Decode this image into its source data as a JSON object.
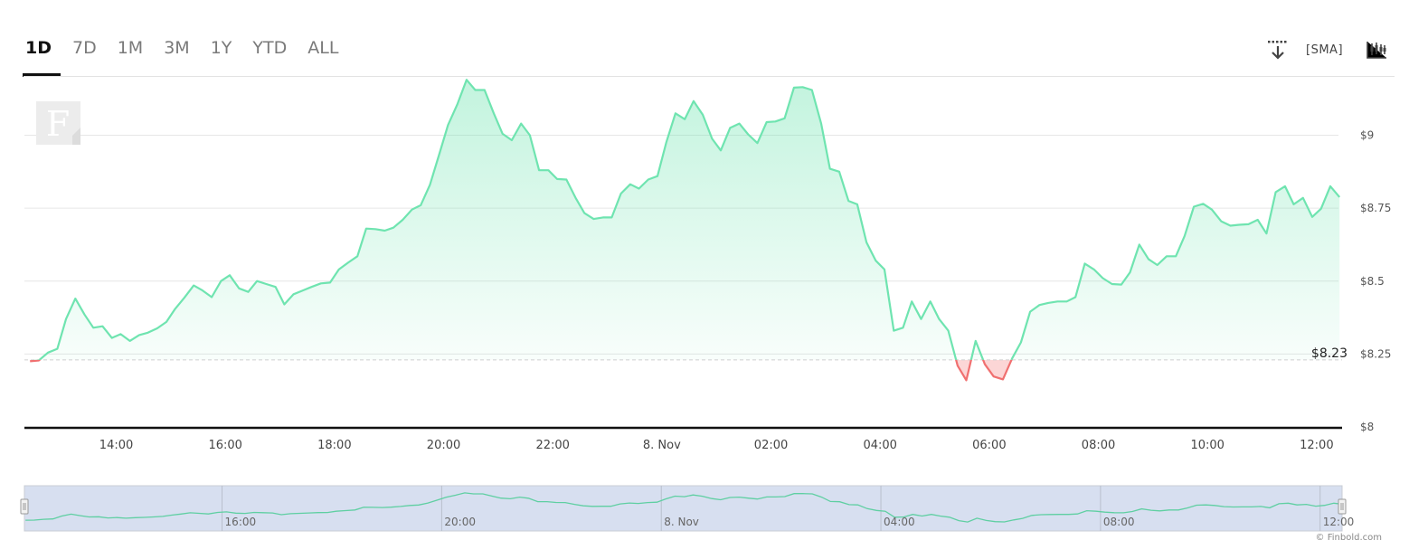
{
  "range_tabs": [
    {
      "label": "1D",
      "active": true
    },
    {
      "label": "7D",
      "active": false
    },
    {
      "label": "1M",
      "active": false
    },
    {
      "label": "3M",
      "active": false
    },
    {
      "label": "1Y",
      "active": false
    },
    {
      "label": "YTD",
      "active": false
    },
    {
      "label": "ALL",
      "active": false
    }
  ],
  "toolbar": {
    "download_icon": "download-icon",
    "sma_label": "SMA",
    "indicators_icon": "candlestick-chart-icon"
  },
  "watermark": {
    "letter": "F"
  },
  "copyright": "© Finbold.com",
  "colors": {
    "up_line": "#6fe4b0",
    "down_line": "#f07070",
    "down_fill": "#fcd6d6",
    "navigator_bg": "#d7dff0"
  },
  "chart_data": {
    "type": "area",
    "title": "",
    "baseline_value": 8.23,
    "baseline_label": "$8.23",
    "y_ticks": [
      {
        "value": 8,
        "label": "$8"
      },
      {
        "value": 8.25,
        "label": "$8.25"
      },
      {
        "value": 8.5,
        "label": "$8.5"
      },
      {
        "value": 8.75,
        "label": "$8.75"
      },
      {
        "value": 9,
        "label": "$9"
      }
    ],
    "ylim": [
      8,
      9.2
    ],
    "x_ticks": [
      {
        "h": 14,
        "label": "14:00"
      },
      {
        "h": 16,
        "label": "16:00"
      },
      {
        "h": 18,
        "label": "18:00"
      },
      {
        "h": 20,
        "label": "20:00"
      },
      {
        "h": 22,
        "label": "22:00"
      },
      {
        "h": 24,
        "label": "8. Nov"
      },
      {
        "h": 26,
        "label": "02:00"
      },
      {
        "h": 28,
        "label": "04:00"
      },
      {
        "h": 30,
        "label": "06:00"
      },
      {
        "h": 32,
        "label": "08:00"
      },
      {
        "h": 34,
        "label": "10:00"
      },
      {
        "h": 36,
        "label": "12:00"
      }
    ],
    "navigator_ticks": [
      {
        "h": 16,
        "label": "16:00"
      },
      {
        "h": 20,
        "label": "20:00"
      },
      {
        "h": 24,
        "label": "8. Nov"
      },
      {
        "h": 28,
        "label": "04:00"
      },
      {
        "h": 32,
        "label": "08:00"
      },
      {
        "h": 36,
        "label": "12:00"
      }
    ],
    "xlim": [
      12.4,
      36.4
    ],
    "series": [
      {
        "points": [
          [
            12.42,
            8.225
          ],
          [
            12.58,
            8.228
          ],
          [
            12.75,
            8.255
          ],
          [
            12.92,
            8.268
          ],
          [
            13.08,
            8.37
          ],
          [
            13.25,
            8.44
          ],
          [
            13.42,
            8.385
          ],
          [
            13.58,
            8.34
          ],
          [
            13.75,
            8.345
          ],
          [
            13.92,
            8.305
          ],
          [
            14.08,
            8.318
          ],
          [
            14.25,
            8.295
          ],
          [
            14.42,
            8.315
          ],
          [
            14.58,
            8.323
          ],
          [
            14.75,
            8.338
          ],
          [
            14.92,
            8.36
          ],
          [
            15.08,
            8.405
          ],
          [
            15.25,
            8.443
          ],
          [
            15.42,
            8.485
          ],
          [
            15.58,
            8.468
          ],
          [
            15.75,
            8.445
          ],
          [
            15.92,
            8.5
          ],
          [
            16.08,
            8.52
          ],
          [
            16.25,
            8.475
          ],
          [
            16.42,
            8.463
          ],
          [
            16.58,
            8.5
          ],
          [
            16.75,
            8.49
          ],
          [
            16.92,
            8.48
          ],
          [
            17.08,
            8.42
          ],
          [
            17.25,
            8.455
          ],
          [
            17.42,
            8.468
          ],
          [
            17.58,
            8.48
          ],
          [
            17.75,
            8.492
          ],
          [
            17.92,
            8.495
          ],
          [
            18.08,
            8.54
          ],
          [
            18.25,
            8.563
          ],
          [
            18.42,
            8.585
          ],
          [
            18.58,
            8.68
          ],
          [
            18.75,
            8.678
          ],
          [
            18.92,
            8.673
          ],
          [
            19.08,
            8.683
          ],
          [
            19.25,
            8.71
          ],
          [
            19.42,
            8.745
          ],
          [
            19.58,
            8.76
          ],
          [
            19.75,
            8.83
          ],
          [
            19.92,
            8.935
          ],
          [
            20.08,
            9.035
          ],
          [
            20.25,
            9.105
          ],
          [
            20.42,
            9.19
          ],
          [
            20.58,
            9.155
          ],
          [
            20.75,
            9.155
          ],
          [
            20.92,
            9.075
          ],
          [
            21.08,
            9.005
          ],
          [
            21.25,
            8.983
          ],
          [
            21.42,
            9.04
          ],
          [
            21.58,
            9.0
          ],
          [
            21.75,
            8.88
          ],
          [
            21.92,
            8.88
          ],
          [
            22.08,
            8.85
          ],
          [
            22.25,
            8.848
          ],
          [
            22.42,
            8.785
          ],
          [
            22.58,
            8.733
          ],
          [
            22.75,
            8.713
          ],
          [
            22.92,
            8.718
          ],
          [
            23.08,
            8.718
          ],
          [
            23.25,
            8.8
          ],
          [
            23.42,
            8.832
          ],
          [
            23.58,
            8.817
          ],
          [
            23.75,
            8.848
          ],
          [
            23.92,
            8.86
          ],
          [
            24.08,
            8.975
          ],
          [
            24.25,
            9.075
          ],
          [
            24.42,
            9.055
          ],
          [
            24.58,
            9.117
          ],
          [
            24.75,
            9.07
          ],
          [
            24.92,
            8.988
          ],
          [
            25.08,
            8.948
          ],
          [
            25.25,
            9.025
          ],
          [
            25.42,
            9.04
          ],
          [
            25.58,
            9.003
          ],
          [
            25.75,
            8.973
          ],
          [
            25.92,
            9.045
          ],
          [
            26.08,
            9.047
          ],
          [
            26.25,
            9.058
          ],
          [
            26.42,
            9.163
          ],
          [
            26.58,
            9.165
          ],
          [
            26.75,
            9.155
          ],
          [
            26.92,
            9.04
          ],
          [
            27.08,
            8.885
          ],
          [
            27.25,
            8.875
          ],
          [
            27.42,
            8.775
          ],
          [
            27.58,
            8.763
          ],
          [
            27.75,
            8.633
          ],
          [
            27.92,
            8.57
          ],
          [
            28.08,
            8.54
          ],
          [
            28.25,
            8.33
          ],
          [
            28.42,
            8.34
          ],
          [
            28.58,
            8.43
          ],
          [
            28.75,
            8.37
          ],
          [
            28.92,
            8.43
          ],
          [
            29.08,
            8.37
          ],
          [
            29.25,
            8.33
          ],
          [
            29.42,
            8.21
          ],
          [
            29.58,
            8.16
          ],
          [
            29.75,
            8.295
          ],
          [
            29.92,
            8.215
          ],
          [
            30.08,
            8.173
          ],
          [
            30.25,
            8.163
          ],
          [
            30.42,
            8.235
          ],
          [
            30.58,
            8.29
          ],
          [
            30.75,
            8.395
          ],
          [
            30.92,
            8.418
          ],
          [
            31.08,
            8.425
          ],
          [
            31.25,
            8.43
          ],
          [
            31.42,
            8.43
          ],
          [
            31.58,
            8.445
          ],
          [
            31.75,
            8.56
          ],
          [
            31.92,
            8.54
          ],
          [
            32.08,
            8.51
          ],
          [
            32.25,
            8.49
          ],
          [
            32.42,
            8.488
          ],
          [
            32.58,
            8.53
          ],
          [
            32.75,
            8.625
          ],
          [
            32.92,
            8.575
          ],
          [
            33.08,
            8.555
          ],
          [
            33.25,
            8.585
          ],
          [
            33.42,
            8.585
          ],
          [
            33.58,
            8.655
          ],
          [
            33.75,
            8.755
          ],
          [
            33.92,
            8.765
          ],
          [
            34.08,
            8.745
          ],
          [
            34.25,
            8.705
          ],
          [
            34.42,
            8.69
          ],
          [
            34.58,
            8.693
          ],
          [
            34.75,
            8.695
          ],
          [
            34.92,
            8.71
          ],
          [
            35.08,
            8.663
          ],
          [
            35.25,
            8.805
          ],
          [
            35.42,
            8.825
          ],
          [
            35.58,
            8.763
          ],
          [
            35.75,
            8.785
          ],
          [
            35.92,
            8.72
          ],
          [
            36.08,
            8.748
          ],
          [
            36.25,
            8.825
          ],
          [
            36.42,
            8.788
          ]
        ]
      }
    ]
  }
}
